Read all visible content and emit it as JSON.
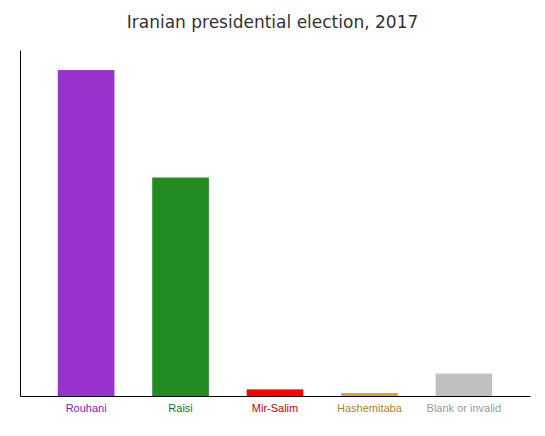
{
  "chart_data": {
    "type": "bar",
    "title": "Iranian presidential election, 2017",
    "categories": [
      "Rouhani",
      "Raisi",
      "Mir-Salim",
      "Hashemitaba",
      "Blank or invalid"
    ],
    "values": [
      23549616,
      15786449,
      478215,
      215450,
      1620355
    ],
    "colors": [
      "#9932CC",
      "#228B22",
      "#FF0000",
      "#DAA520",
      "#C0C0C0"
    ],
    "ylim": [
      0,
      25000000
    ],
    "tick_labels": "x",
    "grid": false
  }
}
